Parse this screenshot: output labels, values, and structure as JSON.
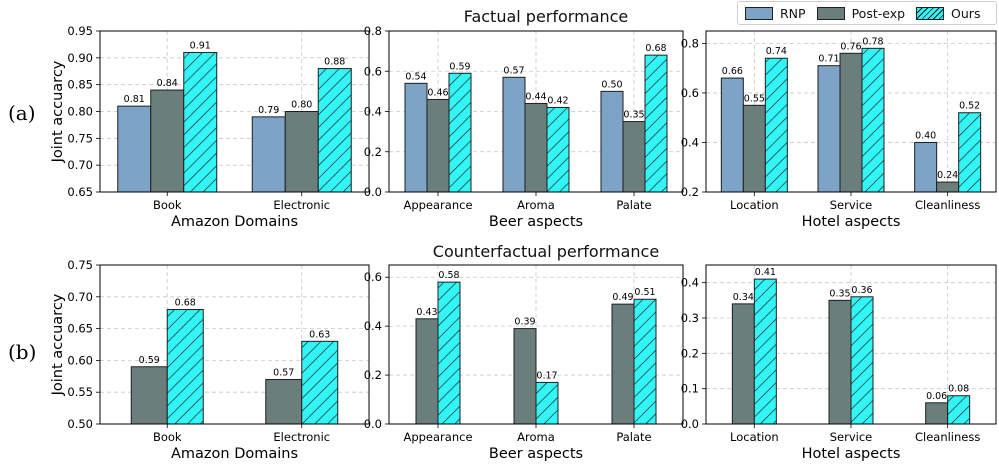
{
  "row_labels": [
    "(a)",
    "(b)"
  ],
  "section_titles": [
    "Factual performance",
    "Counterfactual performance"
  ],
  "legend": {
    "placement": "top-right",
    "items": [
      {
        "name": "RNP",
        "color": "#7da3c7",
        "hatch": false
      },
      {
        "name": "Post-exp",
        "color": "#6a7f7c",
        "hatch": false
      },
      {
        "name": "Ours",
        "color": "#33f5f5",
        "hatch": true
      }
    ]
  },
  "chart_data": [
    {
      "id": "a1",
      "type": "bar",
      "categories": [
        "Book",
        "Electronic"
      ],
      "series": [
        {
          "name": "RNP",
          "values": [
            0.81,
            0.79
          ],
          "labels": [
            "0.81",
            "0.79"
          ]
        },
        {
          "name": "Post-exp",
          "values": [
            0.84,
            0.8
          ],
          "labels": [
            "0.84",
            "0.80"
          ]
        },
        {
          "name": "Ours",
          "values": [
            0.91,
            0.88
          ],
          "labels": [
            "0.91",
            "0.88"
          ]
        }
      ],
      "xlabel": "Amazon Domains",
      "ylabel": "Joint accuarcy",
      "ylim": [
        0.65,
        0.95
      ],
      "yticks": [
        "0.65",
        "0.70",
        "0.75",
        "0.80",
        "0.85",
        "0.90",
        "0.95"
      ],
      "grid": true
    },
    {
      "id": "a2",
      "type": "bar",
      "categories": [
        "Appearance",
        "Aroma",
        "Palate"
      ],
      "series": [
        {
          "name": "RNP",
          "values": [
            0.54,
            0.57,
            0.5
          ],
          "labels": [
            "0.54",
            "0.57",
            "0.50"
          ]
        },
        {
          "name": "Post-exp",
          "values": [
            0.46,
            0.44,
            0.35
          ],
          "labels": [
            "0.46",
            "0.44",
            "0.35"
          ]
        },
        {
          "name": "Ours",
          "values": [
            0.59,
            0.42,
            0.68
          ],
          "labels": [
            "0.59",
            "0.42",
            "0.68"
          ]
        }
      ],
      "xlabel": "Beer aspects",
      "ylabel": "",
      "ylim": [
        0.0,
        0.8
      ],
      "yticks": [
        "0.0",
        "0.2",
        "0.4",
        "0.6",
        "0.8"
      ],
      "grid": true
    },
    {
      "id": "a3",
      "type": "bar",
      "categories": [
        "Location",
        "Service",
        "Cleanliness"
      ],
      "series": [
        {
          "name": "RNP",
          "values": [
            0.66,
            0.71,
            0.4
          ],
          "labels": [
            "0.66",
            "0.71",
            "0.40"
          ]
        },
        {
          "name": "Post-exp",
          "values": [
            0.55,
            0.76,
            0.24
          ],
          "labels": [
            "0.55",
            "0.76",
            "0.24"
          ]
        },
        {
          "name": "Ours",
          "values": [
            0.74,
            0.78,
            0.52
          ],
          "labels": [
            "0.74",
            "0.78",
            "0.52"
          ]
        }
      ],
      "xlabel": "Hotel aspects",
      "ylabel": "",
      "ylim": [
        0.2,
        0.85
      ],
      "yticks": [
        "0.2",
        "0.4",
        "0.6",
        "0.8"
      ],
      "grid": true
    },
    {
      "id": "b1",
      "type": "bar",
      "categories": [
        "Book",
        "Electronic"
      ],
      "series": [
        {
          "name": "Post-exp",
          "values": [
            0.59,
            0.57
          ],
          "labels": [
            "0.59",
            "0.57"
          ]
        },
        {
          "name": "Ours",
          "values": [
            0.68,
            0.63
          ],
          "labels": [
            "0.68",
            "0.63"
          ]
        }
      ],
      "xlabel": "Amazon Domains",
      "ylabel": "Joint accuarcy",
      "ylim": [
        0.5,
        0.75
      ],
      "yticks": [
        "0.50",
        "0.55",
        "0.60",
        "0.65",
        "0.70",
        "0.75"
      ],
      "grid": true
    },
    {
      "id": "b2",
      "type": "bar",
      "categories": [
        "Appearance",
        "Aroma",
        "Palate"
      ],
      "series": [
        {
          "name": "Post-exp",
          "values": [
            0.43,
            0.39,
            0.49
          ],
          "labels": [
            "0.43",
            "0.39",
            "0.49"
          ]
        },
        {
          "name": "Ours",
          "values": [
            0.58,
            0.17,
            0.51
          ],
          "labels": [
            "0.58",
            "0.17",
            "0.51"
          ]
        }
      ],
      "xlabel": "Beer aspects",
      "ylabel": "",
      "ylim": [
        0.0,
        0.65
      ],
      "yticks": [
        "0.0",
        "0.2",
        "0.4",
        "0.6"
      ],
      "grid": true
    },
    {
      "id": "b3",
      "type": "bar",
      "categories": [
        "Location",
        "Service",
        "Cleanliness"
      ],
      "series": [
        {
          "name": "Post-exp",
          "values": [
            0.34,
            0.35,
            0.06
          ],
          "labels": [
            "0.34",
            "0.35",
            "0.06"
          ]
        },
        {
          "name": "Ours",
          "values": [
            0.41,
            0.36,
            0.08
          ],
          "labels": [
            "0.41",
            "0.36",
            "0.08"
          ]
        }
      ],
      "xlabel": "Hotel aspects",
      "ylabel": "",
      "ylim": [
        0.0,
        0.45
      ],
      "yticks": [
        "0.0",
        "0.1",
        "0.2",
        "0.3",
        "0.4"
      ],
      "grid": true
    }
  ]
}
